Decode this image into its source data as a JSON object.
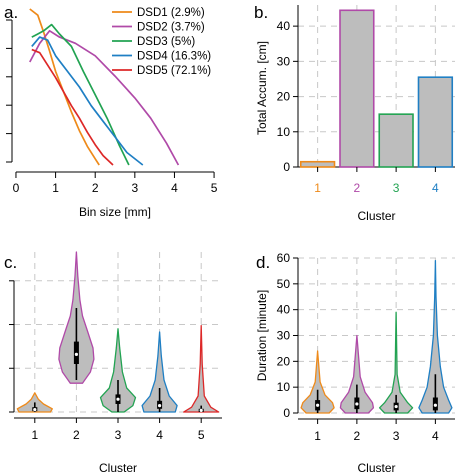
{
  "colors": {
    "DSD1": "#ee8a1a",
    "DSD2": "#b04aa8",
    "DSD3": "#22a352",
    "DSD4": "#1f7fc4",
    "DSD5": "#dd2828",
    "fill": "#bdbdbd",
    "grid": "#c8c8c8"
  },
  "chart_data": [
    {
      "id": "a",
      "type": "line",
      "panel_label": "a.",
      "xlabel": "Bin size [mm]",
      "ylabel": "",
      "xlim": [
        -0.1,
        5.2
      ],
      "ylim": [
        0,
        1
      ],
      "xticks": [
        "0",
        "1",
        "2",
        "3",
        "4",
        "5"
      ],
      "yticks_count": 6,
      "grid": false,
      "legend": "top-right",
      "series": [
        {
          "name": "DSD1 (2.9%)",
          "color": "#ee8a1a",
          "x": [
            0.35,
            0.55,
            0.7,
            0.85,
            1.0,
            1.2,
            1.4,
            1.6,
            1.8,
            2.0,
            2.1
          ],
          "y": [
            1.0,
            0.96,
            0.85,
            0.73,
            0.6,
            0.47,
            0.34,
            0.22,
            0.12,
            0.04,
            0.0
          ]
        },
        {
          "name": "DSD2 (3.7%)",
          "color": "#b04aa8",
          "x": [
            0.35,
            0.6,
            0.85,
            1.1,
            1.5,
            2.0,
            2.5,
            3.0,
            3.4,
            3.8,
            4.1
          ],
          "y": [
            0.66,
            0.78,
            0.86,
            0.82,
            0.78,
            0.7,
            0.57,
            0.43,
            0.3,
            0.14,
            0.0
          ]
        },
        {
          "name": "DSD3 (5%)",
          "color": "#22a352",
          "x": [
            0.4,
            0.55,
            0.7,
            0.9,
            1.1,
            1.4,
            1.7,
            2.0,
            2.3,
            2.6,
            2.85
          ],
          "y": [
            0.82,
            0.84,
            0.86,
            0.9,
            0.84,
            0.76,
            0.6,
            0.45,
            0.3,
            0.13,
            0.0
          ]
        },
        {
          "name": "DSD4 (16.3%)",
          "color": "#1f7fc4",
          "x": [
            0.4,
            0.6,
            0.8,
            1.0,
            1.3,
            1.6,
            1.9,
            2.2,
            2.5,
            2.8,
            3.2
          ],
          "y": [
            0.76,
            0.82,
            0.8,
            0.7,
            0.6,
            0.5,
            0.38,
            0.28,
            0.18,
            0.08,
            0.0
          ]
        },
        {
          "name": "DSD5 (72.1%)",
          "color": "#dd2828",
          "x": [
            0.4,
            0.6,
            0.8,
            1.0,
            1.2,
            1.4,
            1.6,
            1.8,
            2.0,
            2.2,
            2.45
          ],
          "y": [
            0.74,
            0.72,
            0.64,
            0.56,
            0.47,
            0.38,
            0.3,
            0.21,
            0.13,
            0.06,
            0.0
          ]
        }
      ]
    },
    {
      "id": "b",
      "type": "bar",
      "panel_label": "b.",
      "xlabel": "Cluster",
      "ylabel": "Total Accum. [cm]",
      "categories": [
        "1",
        "2",
        "3",
        "4"
      ],
      "values": [
        1.5,
        44.5,
        15,
        25.5
      ],
      "ylim": [
        0,
        46
      ],
      "yticks": [
        0,
        10,
        20,
        30,
        40
      ],
      "grid": true,
      "bar_colors": [
        "#ee8a1a",
        "#b04aa8",
        "#22a352",
        "#1f7fc4"
      ]
    },
    {
      "id": "c",
      "type": "violin",
      "panel_label": "c.",
      "xlabel": "Cluster",
      "ylabel": "",
      "categories": [
        "1",
        "2",
        "3",
        "4",
        "5"
      ],
      "ylim": [
        0,
        1
      ],
      "yticks_count": 4,
      "grid": true,
      "violins": [
        {
          "color": "#ee8a1a",
          "min": 0.0,
          "max": 0.12,
          "q1": 0.005,
          "median": 0.015,
          "q3": 0.03,
          "wlow": 0.0,
          "whigh": 0.06,
          "profile": [
            [
              0,
              0.9
            ],
            [
              0.02,
              1.0
            ],
            [
              0.05,
              0.5
            ],
            [
              0.08,
              0.2
            ],
            [
              0.12,
              0.0
            ]
          ]
        },
        {
          "color": "#b04aa8",
          "min": 0.18,
          "max": 1.0,
          "q1": 0.3,
          "median": 0.36,
          "q3": 0.44,
          "wlow": 0.2,
          "whigh": 0.65,
          "profile": [
            [
              0.18,
              0.35
            ],
            [
              0.25,
              0.8
            ],
            [
              0.33,
              1.0
            ],
            [
              0.4,
              0.95
            ],
            [
              0.5,
              0.65
            ],
            [
              0.6,
              0.35
            ],
            [
              0.7,
              0.2
            ],
            [
              0.85,
              0.08
            ],
            [
              1.0,
              0.0
            ]
          ]
        },
        {
          "color": "#22a352",
          "min": 0.0,
          "max": 0.52,
          "q1": 0.05,
          "median": 0.08,
          "q3": 0.11,
          "wlow": 0.0,
          "whigh": 0.2,
          "profile": [
            [
              0,
              0.35
            ],
            [
              0.04,
              0.85
            ],
            [
              0.09,
              1.0
            ],
            [
              0.15,
              0.5
            ],
            [
              0.25,
              0.25
            ],
            [
              0.4,
              0.1
            ],
            [
              0.52,
              0.0
            ]
          ]
        },
        {
          "color": "#1f7fc4",
          "min": 0.0,
          "max": 0.5,
          "q1": 0.02,
          "median": 0.04,
          "q3": 0.07,
          "wlow": 0.0,
          "whigh": 0.15,
          "profile": [
            [
              0,
              0.9
            ],
            [
              0.04,
              1.0
            ],
            [
              0.1,
              0.55
            ],
            [
              0.2,
              0.25
            ],
            [
              0.35,
              0.1
            ],
            [
              0.5,
              0.0
            ]
          ]
        },
        {
          "color": "#dd2828",
          "min": 0.0,
          "max": 0.54,
          "q1": 0.0,
          "median": 0.01,
          "q3": 0.02,
          "wlow": 0.0,
          "whigh": 0.04,
          "profile": [
            [
              0,
              1.0
            ],
            [
              0.03,
              0.55
            ],
            [
              0.1,
              0.18
            ],
            [
              0.3,
              0.06
            ],
            [
              0.54,
              0.0
            ]
          ]
        }
      ]
    },
    {
      "id": "d",
      "type": "violin",
      "panel_label": "d.",
      "xlabel": "Cluster",
      "ylabel": "Duration [minute]",
      "categories": [
        "1",
        "2",
        "3",
        "4"
      ],
      "ylim": [
        0,
        60
      ],
      "yticks": [
        0,
        10,
        20,
        30,
        40,
        50,
        60
      ],
      "grid": true,
      "violins": [
        {
          "color": "#ee8a1a",
          "min": 0,
          "max": 24,
          "q1": 1,
          "median": 3,
          "q3": 5,
          "wlow": 0,
          "whigh": 9,
          "profile": [
            [
              0,
              0.7
            ],
            [
              2,
              1.0
            ],
            [
              4,
              0.9
            ],
            [
              7,
              0.45
            ],
            [
              12,
              0.15
            ],
            [
              24,
              0.0
            ]
          ]
        },
        {
          "color": "#b04aa8",
          "min": 0,
          "max": 30,
          "q1": 1.5,
          "median": 3.5,
          "q3": 6,
          "wlow": 0,
          "whigh": 11,
          "profile": [
            [
              0,
              0.7
            ],
            [
              2,
              1.0
            ],
            [
              4,
              0.95
            ],
            [
              8,
              0.5
            ],
            [
              14,
              0.2
            ],
            [
              30,
              0.0
            ]
          ]
        },
        {
          "color": "#22a352",
          "min": 0,
          "max": 39,
          "q1": 1,
          "median": 2.5,
          "q3": 4,
          "wlow": 0,
          "whigh": 7,
          "profile": [
            [
              0,
              0.7
            ],
            [
              2,
              1.0
            ],
            [
              4,
              0.7
            ],
            [
              8,
              0.25
            ],
            [
              15,
              0.06
            ],
            [
              39,
              0.0
            ]
          ]
        },
        {
          "color": "#1f7fc4",
          "min": 0,
          "max": 59,
          "q1": 1,
          "median": 3,
          "q3": 6,
          "wlow": 0,
          "whigh": 15,
          "profile": [
            [
              0,
              0.8
            ],
            [
              2,
              1.0
            ],
            [
              5,
              0.8
            ],
            [
              10,
              0.5
            ],
            [
              18,
              0.3
            ],
            [
              30,
              0.12
            ],
            [
              45,
              0.04
            ],
            [
              59,
              0.0
            ]
          ]
        }
      ]
    }
  ]
}
